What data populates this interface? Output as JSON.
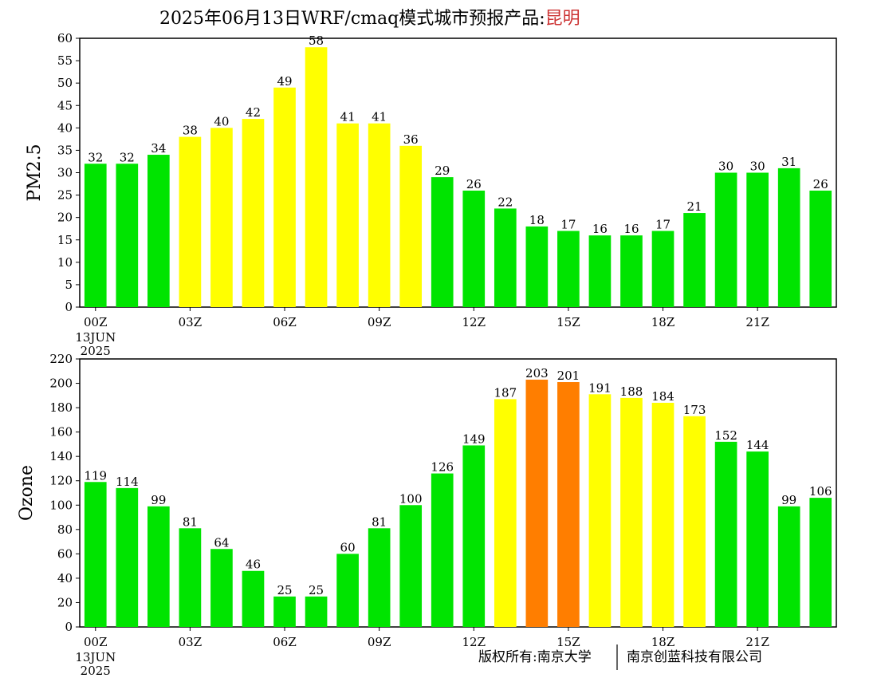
{
  "page": {
    "title_prefix": "2025年06月13日WRF/cmaq模式城市预报产品:",
    "city": "昆明",
    "copyright_a": "版权所有:南京大学",
    "copyright_b": "南京创蓝科技有限公司"
  },
  "colors": {
    "good": "#00e400",
    "moderate": "#ffff00",
    "usg": "#ff7e00",
    "city": "#cc3333"
  },
  "chart_data": [
    {
      "type": "bar",
      "ylabel": "PM2.5",
      "ylim": [
        0,
        60
      ],
      "yticks": [
        0,
        5,
        10,
        15,
        20,
        25,
        30,
        35,
        40,
        45,
        50,
        55,
        60
      ],
      "x_tick_labels": [
        "00Z",
        "03Z",
        "06Z",
        "09Z",
        "12Z",
        "15Z",
        "18Z",
        "21Z"
      ],
      "x_tick_hours": [
        0,
        3,
        6,
        9,
        12,
        15,
        18,
        21
      ],
      "date_label": [
        "13JUN",
        "2025"
      ],
      "hours": [
        0,
        1,
        2,
        3,
        4,
        5,
        6,
        7,
        8,
        9,
        10,
        11,
        12,
        13,
        14,
        15,
        16,
        17,
        18,
        19,
        20,
        21,
        22,
        23
      ],
      "values": [
        32,
        32,
        34,
        38,
        40,
        42,
        49,
        58,
        41,
        41,
        36,
        29,
        26,
        22,
        18,
        17,
        16,
        16,
        17,
        21,
        30,
        30,
        31,
        26
      ],
      "color_levels": [
        "good",
        "good",
        "good",
        "moderate",
        "moderate",
        "moderate",
        "moderate",
        "moderate",
        "moderate",
        "moderate",
        "moderate",
        "good",
        "good",
        "good",
        "good",
        "good",
        "good",
        "good",
        "good",
        "good",
        "good",
        "good",
        "good",
        "good"
      ]
    },
    {
      "type": "bar",
      "ylabel": "Ozone",
      "ylim": [
        0,
        220
      ],
      "yticks": [
        0,
        20,
        40,
        60,
        80,
        100,
        120,
        140,
        160,
        180,
        200,
        220
      ],
      "x_tick_labels": [
        "00Z",
        "03Z",
        "06Z",
        "09Z",
        "12Z",
        "15Z",
        "18Z",
        "21Z"
      ],
      "x_tick_hours": [
        0,
        3,
        6,
        9,
        12,
        15,
        18,
        21
      ],
      "date_label": [
        "13JUN",
        "2025"
      ],
      "hours": [
        0,
        1,
        2,
        3,
        4,
        5,
        6,
        7,
        8,
        9,
        10,
        11,
        12,
        13,
        14,
        15,
        16,
        17,
        18,
        19,
        20,
        21,
        22,
        23
      ],
      "values": [
        119,
        114,
        99,
        81,
        64,
        46,
        25,
        25,
        60,
        81,
        100,
        126,
        149,
        187,
        203,
        201,
        191,
        188,
        184,
        173,
        152,
        144,
        99,
        106
      ],
      "color_levels": [
        "good",
        "good",
        "good",
        "good",
        "good",
        "good",
        "good",
        "good",
        "good",
        "good",
        "good",
        "good",
        "good",
        "moderate",
        "usg",
        "usg",
        "moderate",
        "moderate",
        "moderate",
        "moderate",
        "good",
        "good",
        "good",
        "good"
      ]
    }
  ]
}
